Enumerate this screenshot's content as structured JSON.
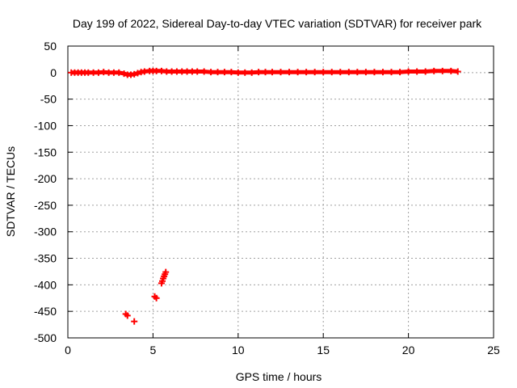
{
  "chart_data": {
    "type": "scatter",
    "title": "Day 199 of 2022, Sidereal Day-to-day VTEC variation (SDTVAR) for receiver park",
    "xlabel": "GPS time / hours",
    "ylabel": "SDTVAR / TECUs",
    "xlim": [
      0,
      25
    ],
    "ylim": [
      -500,
      50
    ],
    "xticks": [
      0,
      5,
      10,
      15,
      20,
      25
    ],
    "yticks": [
      50,
      0,
      -50,
      -100,
      -150,
      -200,
      -250,
      -300,
      -350,
      -400,
      -450,
      -500
    ],
    "grid": true,
    "series": [
      {
        "name": "SDTVAR",
        "color": "#ff0000",
        "marker": "plus",
        "points": [
          [
            0.2,
            0
          ],
          [
            0.4,
            0
          ],
          [
            0.6,
            0
          ],
          [
            0.8,
            0
          ],
          [
            1.0,
            0
          ],
          [
            1.2,
            0
          ],
          [
            1.5,
            0
          ],
          [
            1.8,
            0
          ],
          [
            2.1,
            1
          ],
          [
            2.4,
            0
          ],
          [
            2.7,
            0
          ],
          [
            3.0,
            0
          ],
          [
            3.3,
            -2
          ],
          [
            3.5,
            -4
          ],
          [
            3.7,
            -4
          ],
          [
            3.9,
            -3
          ],
          [
            4.1,
            -1
          ],
          [
            4.3,
            1
          ],
          [
            4.5,
            2
          ],
          [
            4.8,
            3
          ],
          [
            5.0,
            3
          ],
          [
            5.2,
            3
          ],
          [
            5.5,
            3
          ],
          [
            5.8,
            2
          ],
          [
            6.1,
            2
          ],
          [
            6.4,
            2
          ],
          [
            6.7,
            2
          ],
          [
            7.0,
            2
          ],
          [
            7.3,
            2
          ],
          [
            7.6,
            2
          ],
          [
            8.0,
            2
          ],
          [
            8.4,
            1
          ],
          [
            8.8,
            1
          ],
          [
            9.2,
            1
          ],
          [
            9.6,
            1
          ],
          [
            10.0,
            0
          ],
          [
            10.4,
            0
          ],
          [
            10.8,
            0
          ],
          [
            11.2,
            1
          ],
          [
            11.6,
            1
          ],
          [
            12.0,
            1
          ],
          [
            12.5,
            1
          ],
          [
            13.0,
            1
          ],
          [
            13.5,
            1
          ],
          [
            14.0,
            1
          ],
          [
            14.5,
            1
          ],
          [
            15.0,
            1
          ],
          [
            15.5,
            1
          ],
          [
            16.0,
            1
          ],
          [
            16.5,
            1
          ],
          [
            17.0,
            1
          ],
          [
            17.5,
            1
          ],
          [
            18.0,
            1
          ],
          [
            18.5,
            1
          ],
          [
            19.0,
            1
          ],
          [
            19.5,
            1
          ],
          [
            20.0,
            2
          ],
          [
            20.5,
            2
          ],
          [
            21.0,
            2
          ],
          [
            21.5,
            3
          ],
          [
            22.0,
            3
          ],
          [
            22.5,
            3
          ],
          [
            22.9,
            2
          ],
          [
            3.4,
            -455
          ],
          [
            3.5,
            -458
          ],
          [
            3.9,
            -469
          ],
          [
            5.1,
            -422
          ],
          [
            5.2,
            -425
          ],
          [
            5.5,
            -397
          ],
          [
            5.55,
            -393
          ],
          [
            5.6,
            -388
          ],
          [
            5.65,
            -384
          ],
          [
            5.7,
            -380
          ],
          [
            5.75,
            -376
          ]
        ]
      }
    ]
  }
}
